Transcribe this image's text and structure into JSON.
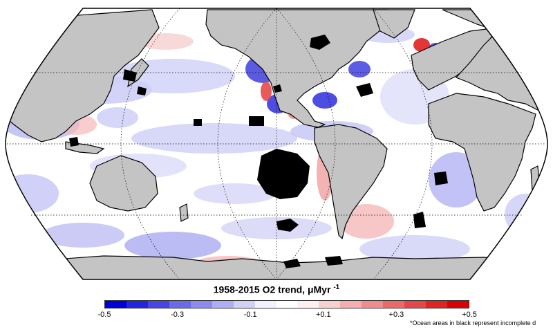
{
  "title": "1958-2015 O2 trend, μMyr",
  "title_exponent": "-1",
  "colorbar": {
    "min": -0.5,
    "max": 0.5,
    "ticks": [
      "-0.5",
      "-0.3",
      "-0.1",
      "+0.1",
      "+0.3",
      "+0.5"
    ],
    "tick_values": [
      -0.5,
      -0.3,
      -0.1,
      0.1,
      0.3,
      0.5
    ],
    "colors": [
      "#0000dd",
      "#2323e0",
      "#4646e5",
      "#6a6aea",
      "#8c8cef",
      "#aeaef4",
      "#d0d0f9",
      "#f0f0ff",
      "#ffffff",
      "#fff0f0",
      "#f9d0d0",
      "#f4aeae",
      "#ef8c8c",
      "#ea6a6a",
      "#e54646",
      "#e02323",
      "#dd0000"
    ]
  },
  "footnote": "*Ocean areas in black represent incomplete d",
  "map": {
    "land_color": "#c4c4c4",
    "missing_data_color": "#000000",
    "ocean_base_color": "#ffffff"
  }
}
